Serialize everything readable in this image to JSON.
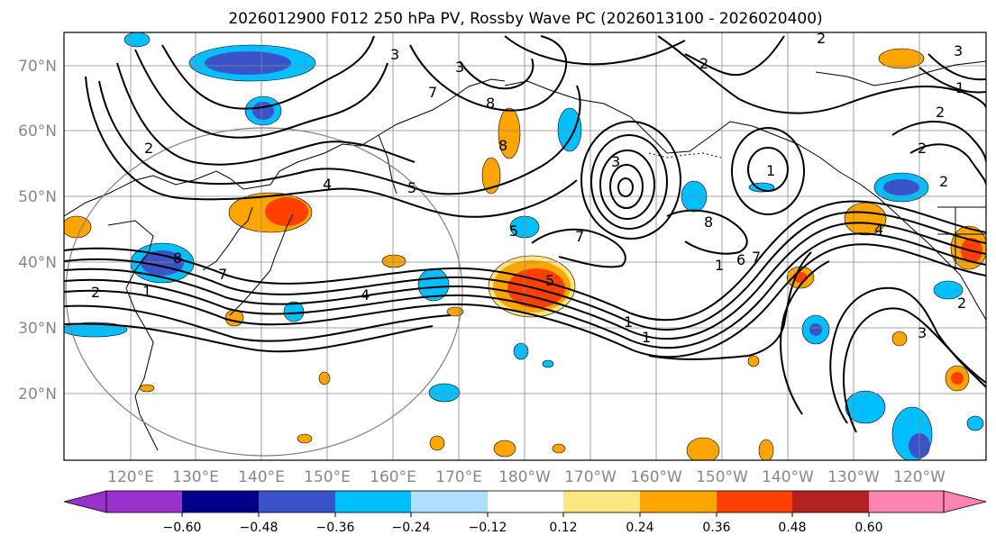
{
  "title": "2026012900 F012 250 hPa PV, Rossby Wave PC (2026013100 - 2026020400)",
  "lat_labels": [
    "70°N",
    "60°N",
    "50°N",
    "40°N",
    "30°N",
    "20°N"
  ],
  "lon_labels": [
    "120°E",
    "130°E",
    "140°E",
    "150°E",
    "160°E",
    "170°E",
    "180°W",
    "170°W",
    "160°W",
    "150°W",
    "140°W",
    "130°W",
    "120°W"
  ],
  "colorbar": {
    "ticks": [
      "−0.60",
      "−0.48",
      "−0.36",
      "−0.24",
      "−0.12",
      "0.12",
      "0.24",
      "0.36",
      "0.48",
      "0.60"
    ],
    "colors": [
      "#9932CC",
      "#00008B",
      "#3A53C8",
      "#00BFFF",
      "#ADDFFF",
      "#FFFFFF",
      "#FFE680",
      "#FFA500",
      "#FF4000",
      "#B22222",
      "#FF85B0"
    ]
  },
  "contour_labels": [
    "3",
    "3",
    "2",
    "2",
    "4",
    "5",
    "8",
    "7",
    "8",
    "2",
    "7",
    "3",
    "2",
    "2",
    "1",
    "3",
    "1",
    "2",
    "1",
    "5",
    "6",
    "1",
    "8",
    "7",
    "8",
    "4",
    "2",
    "1",
    "1",
    "3",
    "5",
    "4",
    "2",
    "7"
  ]
}
